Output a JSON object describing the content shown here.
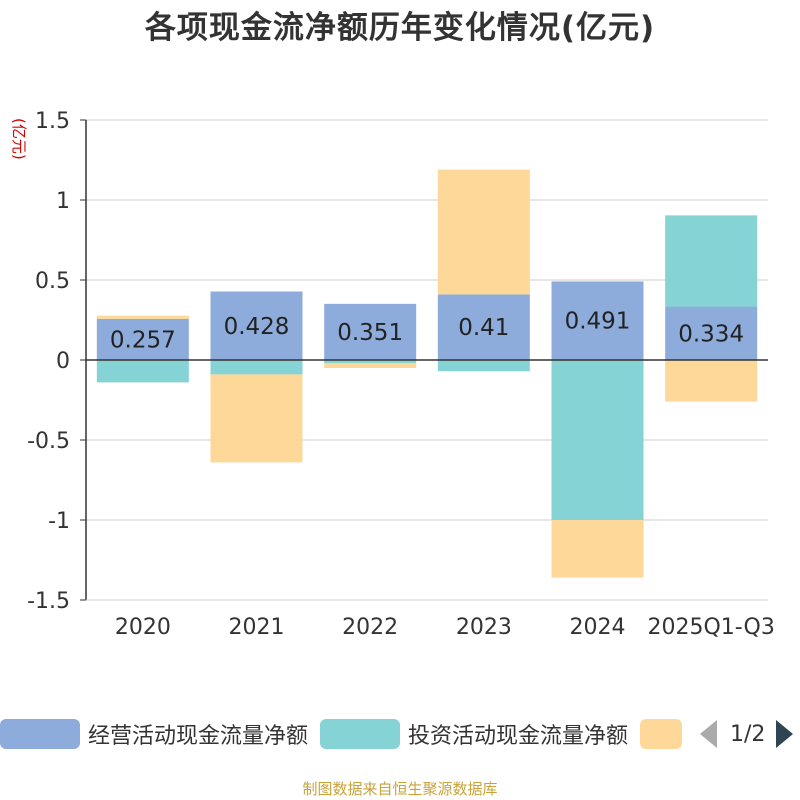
{
  "title": "各项现金流净额历年变化情况(亿元)",
  "unit_label": "(亿元)",
  "source": "制图数据来自恒生聚源数据库",
  "legend": {
    "page_indicator": "1/2"
  },
  "colors": {
    "operating": "#8EACDB",
    "investing": "#86D3D6",
    "financing": "#FDD898",
    "axis": "#333333",
    "grid": "#cccccc"
  },
  "chart_data": {
    "type": "bar",
    "stacked": true,
    "categories": [
      "2020",
      "2021",
      "2022",
      "2023",
      "2024",
      "2025Q1-Q3"
    ],
    "ylim": [
      -1.5,
      1.5
    ],
    "yticks": [
      "1.5",
      "1",
      "0.5",
      "0",
      "-0.5",
      "-1",
      "-1.5"
    ],
    "ytick_values": [
      1.5,
      1,
      0.5,
      0,
      -0.5,
      -1,
      -1.5
    ],
    "grid": true,
    "legend_position": "bottom",
    "series": [
      {
        "name": "经营活动现金流量净额",
        "values": [
          0.257,
          0.428,
          0.351,
          0.41,
          0.491,
          0.334
        ],
        "labels": [
          "0.257",
          "0.428",
          "0.351",
          "0.41",
          "0.491",
          "0.334"
        ]
      },
      {
        "name": "投资活动现金流量净额",
        "values": [
          -0.14,
          -0.09,
          -0.02,
          -0.07,
          -1.0,
          0.57
        ]
      },
      {
        "name": "",
        "values": [
          0.02,
          -0.55,
          -0.03,
          0.78,
          -0.36,
          -0.26
        ]
      }
    ]
  }
}
